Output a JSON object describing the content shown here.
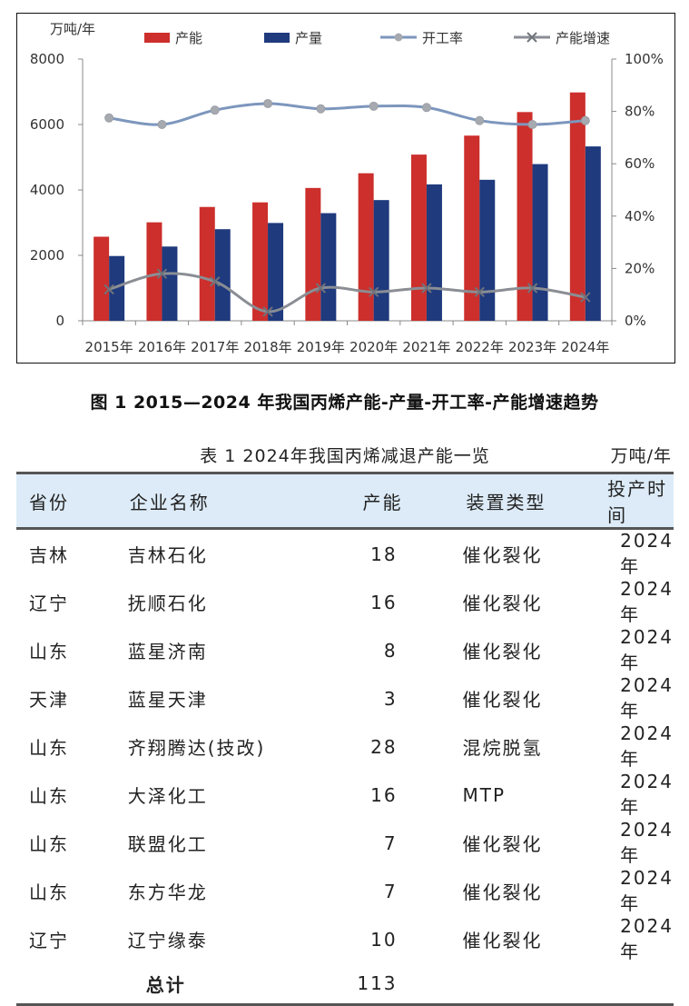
{
  "chart_data": {
    "type": "bar",
    "categories": [
      "2015年",
      "2016年",
      "2017年",
      "2018年",
      "2019年",
      "2020年",
      "2021年",
      "2022年",
      "2023年",
      "2024年"
    ],
    "y_left_label": "万吨/年",
    "y_left_range": [
      0,
      8000
    ],
    "y_left_ticks": [
      "0",
      "2000",
      "4000",
      "6000",
      "8000"
    ],
    "y_right_range": [
      0,
      100
    ],
    "y_right_ticks": [
      "0%",
      "20%",
      "40%",
      "60%",
      "80%",
      "100%"
    ],
    "series": [
      {
        "name": "产能",
        "kind": "bar",
        "axis": "left",
        "color": "#cc2f2c",
        "values": [
          2570,
          3010,
          3480,
          3620,
          4060,
          4510,
          5080,
          5660,
          6380,
          6980
        ]
      },
      {
        "name": "产量",
        "kind": "bar",
        "axis": "left",
        "color": "#1f3a7d",
        "values": [
          1980,
          2270,
          2800,
          2990,
          3290,
          3690,
          4170,
          4310,
          4790,
          5330
        ]
      },
      {
        "name": "开工率",
        "kind": "line",
        "axis": "right",
        "color": "#7d96bd",
        "marker": "circle",
        "values": [
          77.5,
          75,
          80.5,
          83,
          81,
          82,
          81.5,
          76.5,
          75,
          76.5
        ]
      },
      {
        "name": "产能增速",
        "kind": "line",
        "axis": "right",
        "color": "#8a8e94",
        "marker": "x",
        "values": [
          12,
          18,
          15,
          3.5,
          12.5,
          11,
          12.5,
          11,
          12.5,
          9
        ]
      }
    ],
    "legend_position": "top",
    "grid": false
  },
  "figure_caption": "图 1 2015—2024 年我国丙烯产能-产量-开工率-产能增速趋势",
  "table": {
    "title": "表 1 2024年我国丙烯减退产能一览",
    "unit": "万吨/年",
    "headers": [
      "省份",
      "企业名称",
      "产能",
      "装置类型",
      "投产时间"
    ],
    "rows": [
      [
        "吉林",
        "吉林石化",
        "18",
        "催化裂化",
        "2024年"
      ],
      [
        "辽宁",
        "抚顺石化",
        "16",
        "催化裂化",
        "2024年"
      ],
      [
        "山东",
        "蓝星济南",
        "8",
        "催化裂化",
        "2024年"
      ],
      [
        "天津",
        "蓝星天津",
        "3",
        "催化裂化",
        "2024年"
      ],
      [
        "山东",
        "齐翔腾达(技改)",
        "28",
        "混烷脱氢",
        "2024年"
      ],
      [
        "山东",
        "大泽化工",
        "16",
        "MTP",
        "2024年"
      ],
      [
        "山东",
        "联盟化工",
        "7",
        "催化裂化",
        "2024年"
      ],
      [
        "山东",
        "东方华龙",
        "7",
        "催化裂化",
        "2024年"
      ],
      [
        "辽宁",
        "辽宁缘泰",
        "10",
        "催化裂化",
        "2024年"
      ]
    ],
    "total_label": "总计",
    "total_value": "113"
  }
}
